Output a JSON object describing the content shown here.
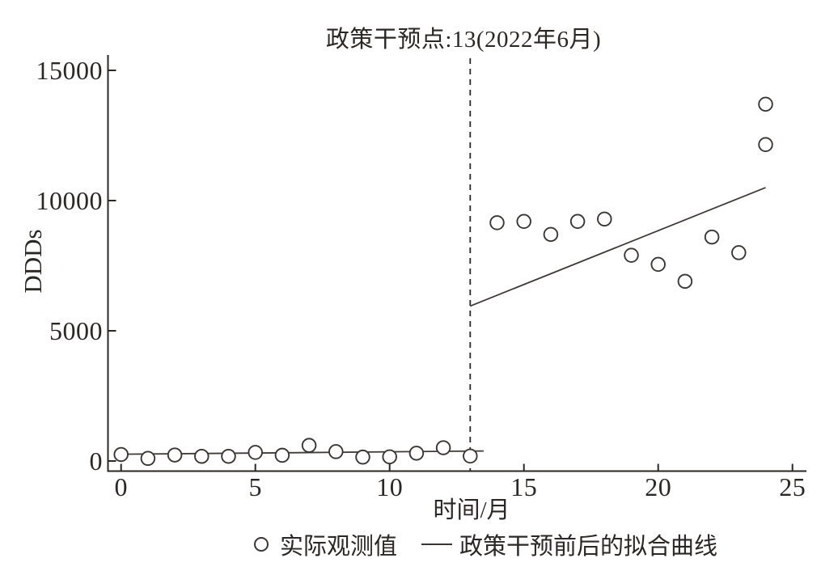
{
  "chart_data": {
    "type": "scatter",
    "title": "政策干预点:13(2022年6月)",
    "xlabel": "时间/月",
    "ylabel": "DDDs",
    "xlim": [
      0,
      25
    ],
    "ylim": [
      0,
      15000
    ],
    "x_ticks": [
      0,
      5,
      10,
      15,
      20,
      25
    ],
    "y_ticks": [
      0,
      5000,
      10000,
      15000
    ],
    "grid": false,
    "legend_position": "bottom-center",
    "intervention": {
      "x": 13,
      "note": "政策干预点:13(2022年6月)"
    },
    "observed_points": [
      [
        0,
        250
      ],
      [
        1,
        100
      ],
      [
        2,
        230
      ],
      [
        3,
        180
      ],
      [
        4,
        180
      ],
      [
        5,
        330
      ],
      [
        6,
        220
      ],
      [
        7,
        600
      ],
      [
        8,
        360
      ],
      [
        9,
        150
      ],
      [
        10,
        160
      ],
      [
        11,
        300
      ],
      [
        12,
        510
      ],
      [
        13,
        190
      ],
      [
        14,
        9150
      ],
      [
        15,
        9200
      ],
      [
        16,
        8700
      ],
      [
        17,
        9200
      ],
      [
        18,
        9290
      ],
      [
        19,
        7900
      ],
      [
        20,
        7550
      ],
      [
        21,
        6900
      ],
      [
        22,
        8600
      ],
      [
        23,
        8000
      ],
      [
        24,
        12150
      ],
      [
        24,
        13700
      ]
    ],
    "fit_line_pre": [
      [
        0,
        260
      ],
      [
        13.5,
        385
      ]
    ],
    "fit_line_post": [
      [
        13,
        5950
      ],
      [
        24,
        10500
      ]
    ],
    "legend": [
      {
        "marker": "circle",
        "label": "实际观测值"
      },
      {
        "marker": "line",
        "label": "政策干预前后的拟合曲线"
      }
    ],
    "colors": {
      "ink": "#2b2724",
      "marker_stroke": "#3a3633",
      "fit_line": "#3f3b38",
      "background": "#ffffff"
    }
  }
}
